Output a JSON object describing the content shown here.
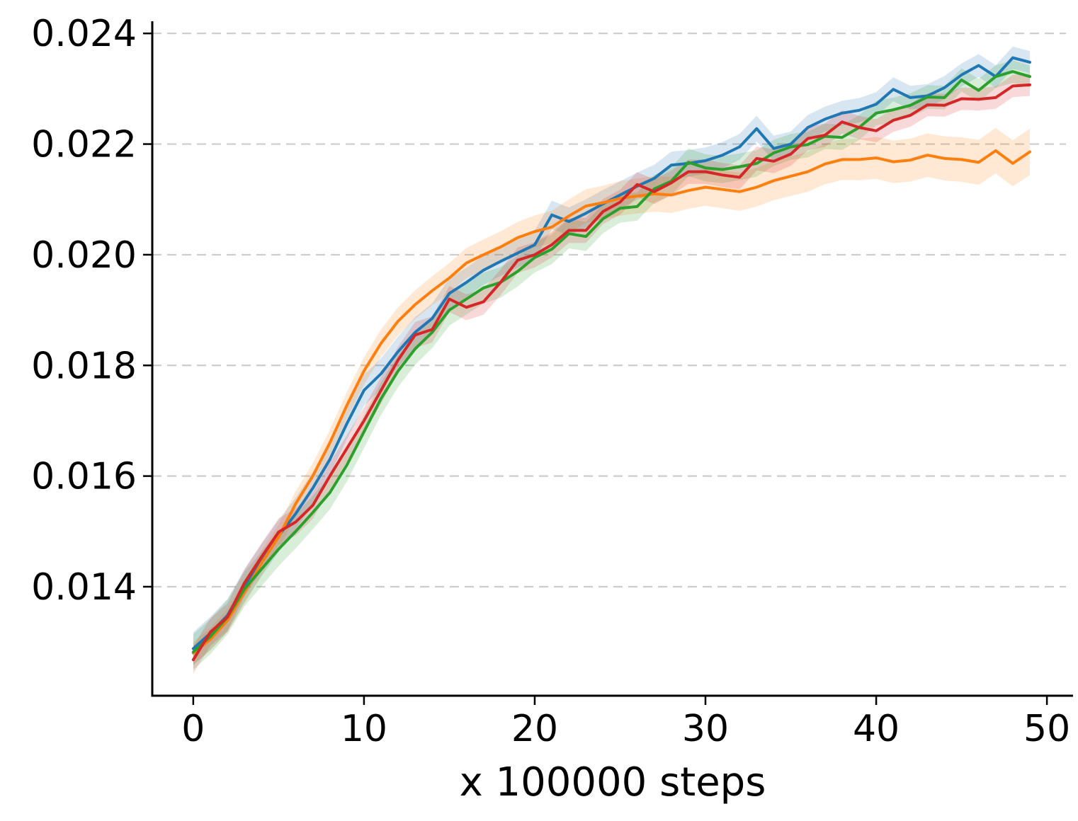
{
  "chart_data": {
    "type": "line",
    "title": "",
    "xlabel": "x 100000 steps",
    "ylabel": "",
    "xlim": [
      -2.4,
      51.53
    ],
    "ylim": [
      0.01203,
      0.02422
    ],
    "x_ticks": [
      0,
      10,
      20,
      30,
      40,
      50
    ],
    "x_tick_labels": [
      "0",
      "10",
      "20",
      "30",
      "40",
      "50"
    ],
    "y_ticks": [
      0.014,
      0.016,
      0.018,
      0.02,
      0.022,
      0.024
    ],
    "y_tick_labels": [
      "0.014",
      "0.016",
      "0.018",
      "0.020",
      "0.022",
      "0.024"
    ],
    "grid": "horizontal-dashed",
    "grid_color": "#cccccc",
    "legend": "none",
    "band_alpha": 0.18,
    "x": [
      0,
      1,
      2,
      3,
      4,
      5,
      6,
      7,
      8,
      9,
      10,
      11,
      12,
      13,
      14,
      15,
      16,
      17,
      18,
      19,
      20,
      21,
      22,
      23,
      24,
      25,
      26,
      27,
      28,
      29,
      30,
      31,
      32,
      33,
      34,
      35,
      36,
      37,
      38,
      39,
      40,
      41,
      42,
      43,
      44,
      45,
      46,
      47,
      48,
      49
    ],
    "series": [
      {
        "name": "blue",
        "color": "#1f77b4",
        "band_halfwidth_start": 0.0003,
        "band_halfwidth_end": 0.0002,
        "values": [
          0.01288,
          0.01316,
          0.01348,
          0.01402,
          0.01448,
          0.01492,
          0.01532,
          0.01578,
          0.0163,
          0.01695,
          0.01755,
          0.01785,
          0.01825,
          0.0186,
          0.01885,
          0.0193,
          0.0195,
          0.01972,
          0.01988,
          0.02003,
          0.02018,
          0.02072,
          0.0206,
          0.02075,
          0.02092,
          0.02108,
          0.02124,
          0.02138,
          0.02162,
          0.02165,
          0.0217,
          0.0218,
          0.02195,
          0.02228,
          0.02192,
          0.022,
          0.0223,
          0.02245,
          0.02256,
          0.02261,
          0.02272,
          0.02299,
          0.02284,
          0.02287,
          0.02302,
          0.02325,
          0.02342,
          0.02322,
          0.02356,
          0.02348
        ]
      },
      {
        "name": "orange",
        "color": "#ff7f0e",
        "band_halfwidth_start": 0.0002,
        "band_halfwidth_end": 0.00042,
        "values": [
          0.0128,
          0.01305,
          0.01339,
          0.0139,
          0.01443,
          0.0149,
          0.0155,
          0.016,
          0.0166,
          0.01728,
          0.0179,
          0.0184,
          0.0188,
          0.0191,
          0.01935,
          0.01958,
          0.01985,
          0.02,
          0.02014,
          0.02031,
          0.02042,
          0.0205,
          0.0207,
          0.02088,
          0.02094,
          0.02102,
          0.02106,
          0.0211,
          0.02108,
          0.02116,
          0.02122,
          0.02118,
          0.02114,
          0.02122,
          0.02134,
          0.02142,
          0.0215,
          0.02164,
          0.02172,
          0.02172,
          0.02175,
          0.02168,
          0.02171,
          0.0218,
          0.02174,
          0.02172,
          0.02167,
          0.02188,
          0.02165,
          0.02186
        ]
      },
      {
        "name": "green",
        "color": "#2ca02c",
        "band_halfwidth_start": 0.00032,
        "band_halfwidth_end": 0.0002,
        "values": [
          0.01282,
          0.0131,
          0.01345,
          0.01396,
          0.01432,
          0.01468,
          0.015,
          0.01534,
          0.0157,
          0.0162,
          0.0168,
          0.0174,
          0.0179,
          0.0183,
          0.0186,
          0.019,
          0.0192,
          0.0194,
          0.0195,
          0.0197,
          0.01995,
          0.0201,
          0.02038,
          0.02033,
          0.02065,
          0.02084,
          0.02087,
          0.02119,
          0.02133,
          0.02167,
          0.02157,
          0.02154,
          0.02159,
          0.02165,
          0.02184,
          0.02195,
          0.02199,
          0.02214,
          0.02212,
          0.0223,
          0.02256,
          0.02262,
          0.0227,
          0.02285,
          0.02284,
          0.02316,
          0.02297,
          0.02322,
          0.02331,
          0.02322
        ]
      },
      {
        "name": "red",
        "color": "#d62728",
        "band_halfwidth_start": 0.00025,
        "band_halfwidth_end": 0.0002,
        "values": [
          0.01268,
          0.01318,
          0.01345,
          0.01407,
          0.01454,
          0.01499,
          0.01517,
          0.01547,
          0.016,
          0.0165,
          0.017,
          0.01755,
          0.0181,
          0.01855,
          0.01865,
          0.0192,
          0.01905,
          0.01915,
          0.0195,
          0.0199,
          0.02,
          0.02018,
          0.02044,
          0.02044,
          0.02078,
          0.02095,
          0.02127,
          0.02114,
          0.0213,
          0.0215,
          0.0215,
          0.02144,
          0.0214,
          0.02174,
          0.02169,
          0.02182,
          0.0221,
          0.02216,
          0.0224,
          0.0223,
          0.02224,
          0.02243,
          0.02252,
          0.02271,
          0.0227,
          0.02282,
          0.02281,
          0.02284,
          0.02305,
          0.02307
        ]
      }
    ]
  }
}
